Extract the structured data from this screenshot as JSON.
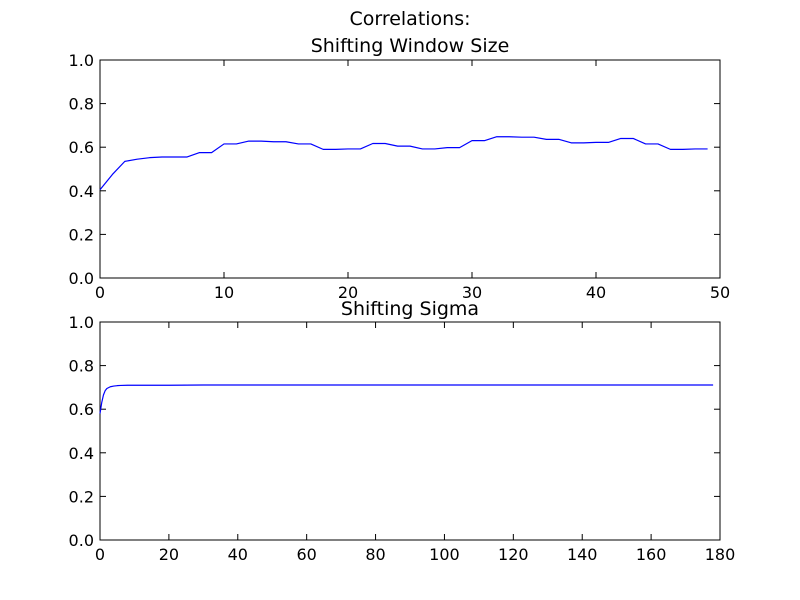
{
  "chart_data": [
    {
      "type": "line",
      "title_lines": [
        "Correlations:",
        "Shifting Window Size"
      ],
      "xlabel": "",
      "ylabel": "",
      "xlim": [
        0,
        50
      ],
      "ylim": [
        0,
        1.0
      ],
      "grid": false,
      "x_ticks": [
        0,
        10,
        20,
        30,
        40,
        50
      ],
      "y_ticks": [
        0.0,
        0.2,
        0.4,
        0.6,
        0.8,
        1.0
      ],
      "x_tick_labels": [
        "0",
        "10",
        "20",
        "30",
        "40",
        "50"
      ],
      "y_tick_labels": [
        "0.0",
        "0.2",
        "0.4",
        "0.6",
        "0.8",
        "1.0"
      ],
      "line_color": "#0000ff",
      "series": [
        {
          "x": [
            0,
            1,
            2,
            3,
            4,
            5,
            6,
            7,
            8,
            9,
            10,
            11,
            12,
            13,
            14,
            15,
            16,
            17,
            18,
            19,
            20,
            21,
            22,
            23,
            24,
            25,
            26,
            27,
            28,
            29,
            30,
            31,
            32,
            33,
            34,
            35,
            36,
            37,
            38,
            39,
            40,
            41,
            42,
            43,
            44,
            45,
            46,
            47,
            48,
            49
          ],
          "y": [
            0.405,
            0.475,
            0.535,
            0.545,
            0.552,
            0.555,
            0.555,
            0.555,
            0.575,
            0.575,
            0.615,
            0.615,
            0.628,
            0.628,
            0.625,
            0.625,
            0.615,
            0.615,
            0.59,
            0.59,
            0.592,
            0.592,
            0.617,
            0.617,
            0.605,
            0.605,
            0.592,
            0.592,
            0.598,
            0.598,
            0.63,
            0.63,
            0.648,
            0.648,
            0.646,
            0.646,
            0.636,
            0.636,
            0.62,
            0.62,
            0.622,
            0.622,
            0.64,
            0.64,
            0.615,
            0.615,
            0.59,
            0.59,
            0.592,
            0.592
          ]
        }
      ]
    },
    {
      "type": "line",
      "title_lines": [
        "Shifting Sigma"
      ],
      "xlabel": "",
      "ylabel": "",
      "xlim": [
        0,
        180
      ],
      "ylim": [
        0,
        1.0
      ],
      "grid": false,
      "x_ticks": [
        0,
        20,
        40,
        60,
        80,
        100,
        120,
        140,
        160,
        180
      ],
      "y_ticks": [
        0.0,
        0.2,
        0.4,
        0.6,
        0.8,
        1.0
      ],
      "x_tick_labels": [
        "0",
        "20",
        "40",
        "60",
        "80",
        "100",
        "120",
        "140",
        "160",
        "180"
      ],
      "y_tick_labels": [
        "0.0",
        "0.2",
        "0.4",
        "0.6",
        "0.8",
        "1.0"
      ],
      "line_color": "#0000ff",
      "series": [
        {
          "x": [
            0,
            0.5,
            1,
            1.5,
            2,
            3,
            4,
            5,
            6,
            8,
            10,
            15,
            20,
            30,
            40,
            60,
            80,
            100,
            120,
            140,
            160,
            178
          ],
          "y": [
            0.58,
            0.63,
            0.665,
            0.685,
            0.695,
            0.703,
            0.706,
            0.708,
            0.709,
            0.71,
            0.71,
            0.71,
            0.71,
            0.711,
            0.711,
            0.711,
            0.711,
            0.711,
            0.711,
            0.711,
            0.711,
            0.711
          ]
        }
      ]
    }
  ]
}
